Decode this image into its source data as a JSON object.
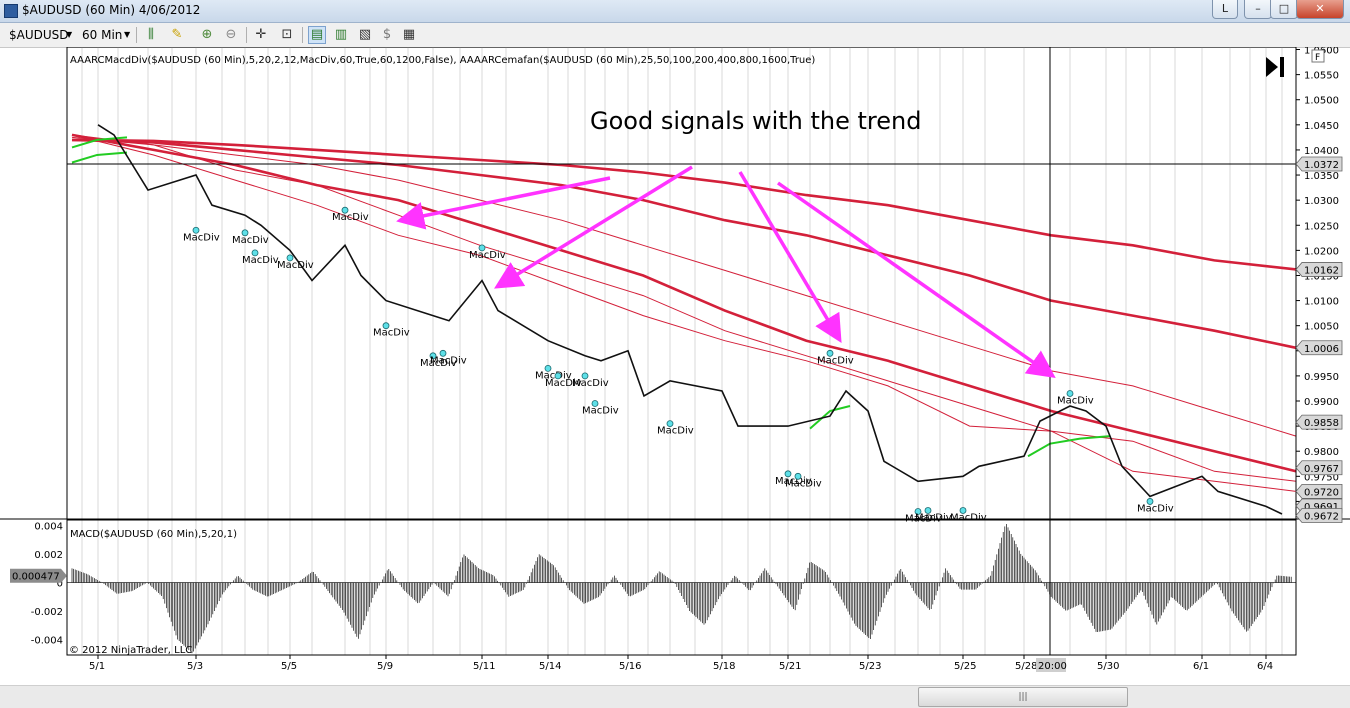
{
  "window": {
    "title": "$AUDUSD (60 Min)  4/06/2012",
    "btn_l": "L",
    "btn_min": "–",
    "btn_max": "□",
    "btn_close": "✕"
  },
  "toolbar": {
    "instrument": "$AUDUSD",
    "interval": "60 Min",
    "icons": [
      "bars-type-icon",
      "drawing-pencil-icon",
      "zoom-in-icon",
      "zoom-out-icon",
      "crosshair-icon",
      "zoom-box-icon",
      "chart-style-icon",
      "candlestick-icon",
      "chart-properties-icon",
      "data-box-icon",
      "strategy-icon"
    ]
  },
  "chart_data": [
    {
      "type": "line",
      "title": "",
      "indicator_label": "AAARCMacdDiv($AUDUSD (60 Min),5,20,2,12,MacDiv,60,True,60,1200,False), AAAARCemafan($AUDUSD (60 Min),25,50,100,200,400,800,1600,True)",
      "annotation": "Good signals with the trend",
      "corner_letter": "F",
      "ylim": [
        0.9665,
        1.0605
      ],
      "y_ticks": [
        "1.0600",
        "1.0550",
        "1.0500",
        "1.0450",
        "1.0400",
        "1.0350",
        "1.0300",
        "1.0250",
        "1.0200",
        "1.0150",
        "1.0100",
        "1.0050",
        "1.0000",
        "0.9950",
        "0.9900",
        "0.9850",
        "0.9800",
        "0.9750",
        "0.9700"
      ],
      "price_tags": [
        {
          "label": "1.0372",
          "value": 1.0372
        },
        {
          "label": "1.0162",
          "value": 1.0162
        },
        {
          "label": "1.0006",
          "value": 1.0006
        },
        {
          "label": "0.9858",
          "value": 0.9858
        },
        {
          "label": "0.9767",
          "value": 0.9767
        },
        {
          "label": "0.9720",
          "value": 0.972
        },
        {
          "label": "0.9691",
          "value": 0.9691
        },
        {
          "label": "0.9672",
          "value": 0.9672
        }
      ],
      "horizontal_line": 1.0372,
      "x_ticks": [
        "5/1",
        "5/3",
        "5/5",
        "5/9",
        "5/11",
        "5/14",
        "5/16",
        "5/18",
        "5/21",
        "5/23",
        "5/25",
        "5/28",
        "5/30",
        "6/1",
        "6/4"
      ],
      "crosshair_time": "20:00",
      "price_series": [
        {
          "x": "5/1",
          "y": 1.045
        },
        {
          "x": "5/1",
          "y": 1.043
        },
        {
          "x": "5/2",
          "y": 1.032
        },
        {
          "x": "5/3",
          "y": 1.035
        },
        {
          "x": "5/3",
          "y": 1.029
        },
        {
          "x": "5/4",
          "y": 1.027
        },
        {
          "x": "5/4",
          "y": 1.025
        },
        {
          "x": "5/5",
          "y": 1.02
        },
        {
          "x": "5/7",
          "y": 1.014
        },
        {
          "x": "5/8",
          "y": 1.021
        },
        {
          "x": "5/8",
          "y": 1.015
        },
        {
          "x": "5/9",
          "y": 1.01
        },
        {
          "x": "5/10",
          "y": 1.007
        },
        {
          "x": "5/10",
          "y": 1.006
        },
        {
          "x": "5/11",
          "y": 1.014
        },
        {
          "x": "5/11",
          "y": 1.008
        },
        {
          "x": "5/14",
          "y": 1.002
        },
        {
          "x": "5/15",
          "y": 0.999
        },
        {
          "x": "5/15",
          "y": 0.998
        },
        {
          "x": "5/16",
          "y": 1.0
        },
        {
          "x": "5/16",
          "y": 0.991
        },
        {
          "x": "5/17",
          "y": 0.994
        },
        {
          "x": "5/18",
          "y": 0.992
        },
        {
          "x": "5/18",
          "y": 0.985
        },
        {
          "x": "5/21",
          "y": 0.985
        },
        {
          "x": "5/22",
          "y": 0.987
        },
        {
          "x": "5/22",
          "y": 0.992
        },
        {
          "x": "5/23",
          "y": 0.988
        },
        {
          "x": "5/23",
          "y": 0.978
        },
        {
          "x": "5/24",
          "y": 0.974
        },
        {
          "x": "5/25",
          "y": 0.975
        },
        {
          "x": "5/25",
          "y": 0.977
        },
        {
          "x": "5/28",
          "y": 0.979
        },
        {
          "x": "5/28",
          "y": 0.986
        },
        {
          "x": "5/29",
          "y": 0.989
        },
        {
          "x": "5/29",
          "y": 0.988
        },
        {
          "x": "5/30",
          "y": 0.985
        },
        {
          "x": "5/30",
          "y": 0.977
        },
        {
          "x": "5/31",
          "y": 0.971
        },
        {
          "x": "6/1",
          "y": 0.975
        },
        {
          "x": "6/1",
          "y": 0.972
        },
        {
          "x": "6/4",
          "y": 0.969
        },
        {
          "x": "6/4",
          "y": 0.9675
        }
      ],
      "ema_fan": [
        {
          "name": "",
          "values": [
            1.043,
            1.039,
            1.034,
            1.029,
            1.023,
            1.019,
            1.013,
            1.007,
            1.002,
            0.998,
            0.993,
            0.985,
            0.984,
            0.976,
            0.974,
            0.972
          ]
        },
        {
          "name": "",
          "values": [
            1.043,
            1.041,
            1.036,
            1.033,
            1.027,
            1.021,
            1.016,
            1.011,
            1.004,
            0.999,
            0.994,
            0.989,
            0.984,
            0.982,
            0.976,
            0.974
          ]
        },
        {
          "name": "",
          "values": [
            1.043,
            1.04,
            1.037,
            1.033,
            1.03,
            1.025,
            1.02,
            1.015,
            1.008,
            1.002,
            0.998,
            0.993,
            0.988,
            0.984,
            0.98,
            0.976
          ]
        },
        {
          "name": "",
          "values": [
            1.0425,
            1.041,
            1.039,
            1.037,
            1.034,
            1.03,
            1.026,
            1.021,
            1.016,
            1.011,
            1.006,
            1.001,
            0.996,
            0.993,
            0.988,
            0.983
          ]
        },
        {
          "name": "",
          "values": [
            1.042,
            1.0415,
            1.04,
            1.0385,
            1.037,
            1.035,
            1.033,
            1.03,
            1.026,
            1.023,
            1.019,
            1.015,
            1.01,
            1.007,
            1.004,
            1.0006
          ]
        },
        {
          "name": "",
          "values": [
            1.042,
            1.0418,
            1.041,
            1.04,
            1.039,
            1.038,
            1.037,
            1.0355,
            1.0335,
            1.031,
            1.029,
            1.026,
            1.023,
            1.021,
            1.018,
            1.0162
          ]
        }
      ],
      "macdiv_markers": [
        {
          "label": "MacDiv",
          "x": "5/3",
          "y": 1.024
        },
        {
          "label": "MacDiv",
          "x": "5/4",
          "y": 1.0235
        },
        {
          "label": "MacDiv",
          "x": "5/4",
          "y": 1.0195
        },
        {
          "label": "MacDiv",
          "x": "5/5",
          "y": 1.0185
        },
        {
          "label": "MacDiv",
          "x": "5/8",
          "y": 1.028
        },
        {
          "label": "MacDiv",
          "x": "5/9",
          "y": 1.005
        },
        {
          "label": "MacDiv",
          "x": "5/10",
          "y": 0.999
        },
        {
          "label": "MacDiv",
          "x": "5/10",
          "y": 0.9995
        },
        {
          "label": "MacDiv",
          "x": "5/11",
          "y": 1.0205
        },
        {
          "label": "MacDiv",
          "x": "5/14",
          "y": 0.9965
        },
        {
          "label": "MacDiv",
          "x": "5/14",
          "y": 0.995
        },
        {
          "label": "MacDiv",
          "x": "5/15",
          "y": 0.995
        },
        {
          "label": "MacDiv",
          "x": "5/15",
          "y": 0.9895
        },
        {
          "label": "MacDiv",
          "x": "5/17",
          "y": 0.9855
        },
        {
          "label": "MacDiv",
          "x": "5/21",
          "y": 0.9755
        },
        {
          "label": "MacDiv",
          "x": "5/21",
          "y": 0.975
        },
        {
          "label": "MacDiv",
          "x": "5/22",
          "y": 0.9995
        },
        {
          "label": "MacDiv",
          "x": "5/24",
          "y": 0.968
        },
        {
          "label": "MacDiv",
          "x": "5/24",
          "y": 0.9682
        },
        {
          "label": "MacDiv",
          "x": "5/25",
          "y": 0.9682
        },
        {
          "label": "MacDiv",
          "x": "5/29",
          "y": 0.9915
        },
        {
          "label": "MacDiv",
          "x": "5/31",
          "y": 0.97
        }
      ]
    },
    {
      "type": "bar",
      "title": "MACD($AUDUSD (60 Min),5,20,1)",
      "ylim": [
        -0.0051,
        0.0044
      ],
      "y_ticks": [
        "0.004",
        "0.002",
        "0",
        "-0.002",
        "-0.004"
      ],
      "current_label": "0.000477",
      "current_value": 0.000477,
      "copyright": "© 2012 NinjaTrader, LLC",
      "values": [
        0.001,
        0.0006,
        0.0,
        -0.0008,
        -0.0006,
        0.0,
        -0.001,
        -0.004,
        -0.005,
        -0.003,
        -0.0008,
        0.0005,
        -0.0005,
        -0.001,
        -0.0005,
        0.0,
        0.0008,
        -0.0006,
        -0.002,
        -0.004,
        -0.001,
        0.001,
        -0.0005,
        -0.0015,
        0.0,
        -0.001,
        0.002,
        0.001,
        0.0005,
        -0.001,
        -0.0005,
        0.002,
        0.0012,
        -0.0005,
        -0.0015,
        -0.001,
        0.0005,
        -0.001,
        -0.0005,
        0.0008,
        0.0,
        -0.002,
        -0.003,
        -0.001,
        0.0005,
        -0.0006,
        0.001,
        -0.0005,
        -0.002,
        0.0015,
        0.0008,
        -0.001,
        -0.003,
        -0.004,
        -0.001,
        0.001,
        -0.0008,
        -0.002,
        0.001,
        -0.0005,
        -0.0005,
        0.0005,
        0.0042,
        0.002,
        0.0008,
        -0.001,
        -0.002,
        -0.0015,
        -0.0035,
        -0.0033,
        -0.002,
        -0.0005,
        -0.003,
        -0.001,
        -0.002,
        -0.001,
        0.0,
        -0.002,
        -0.0035,
        -0.002,
        0.0005,
        0.0004
      ]
    }
  ]
}
